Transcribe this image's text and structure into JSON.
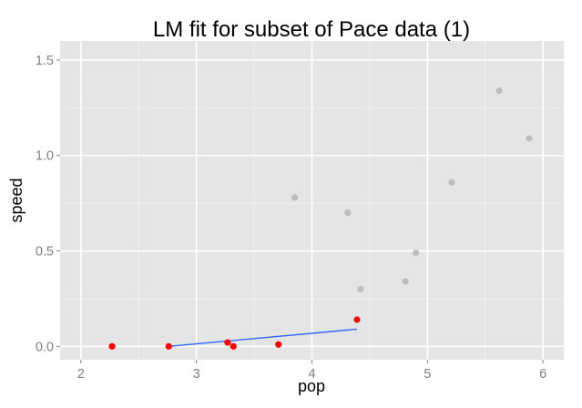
{
  "chart_data": {
    "type": "scatter",
    "title": "LM fit for subset of Pace data (1)",
    "xlabel": "pop",
    "ylabel": "speed",
    "xlim": [
      1.82,
      6.18
    ],
    "ylim": [
      -0.07,
      1.6
    ],
    "x_ticks": [
      2,
      3,
      4,
      5,
      6
    ],
    "y_ticks": [
      0.0,
      0.5,
      1.0,
      1.5
    ],
    "x_tick_labels": [
      "2",
      "3",
      "4",
      "5",
      "6"
    ],
    "y_tick_labels": [
      "0.0",
      "0.5",
      "1.0",
      "1.5"
    ],
    "grid": true,
    "series": [
      {
        "role": "excluded points",
        "color": "#bebebe",
        "x": [
          3.85,
          4.31,
          4.42,
          4.81,
          4.9,
          5.21,
          5.62,
          5.88
        ],
        "y": [
          0.78,
          0.7,
          0.3,
          0.34,
          0.49,
          0.86,
          1.34,
          1.09
        ]
      },
      {
        "role": "fitted subset points",
        "color": "#ff0000",
        "x": [
          2.27,
          2.76,
          3.27,
          3.32,
          3.71,
          4.39
        ],
        "y": [
          0.0,
          0.0,
          0.02,
          0.0,
          0.01,
          0.14
        ]
      },
      {
        "role": "linear fit",
        "color": "#3366ff",
        "x": [
          2.76,
          4.39
        ],
        "y": [
          0.0,
          0.09
        ]
      }
    ]
  }
}
